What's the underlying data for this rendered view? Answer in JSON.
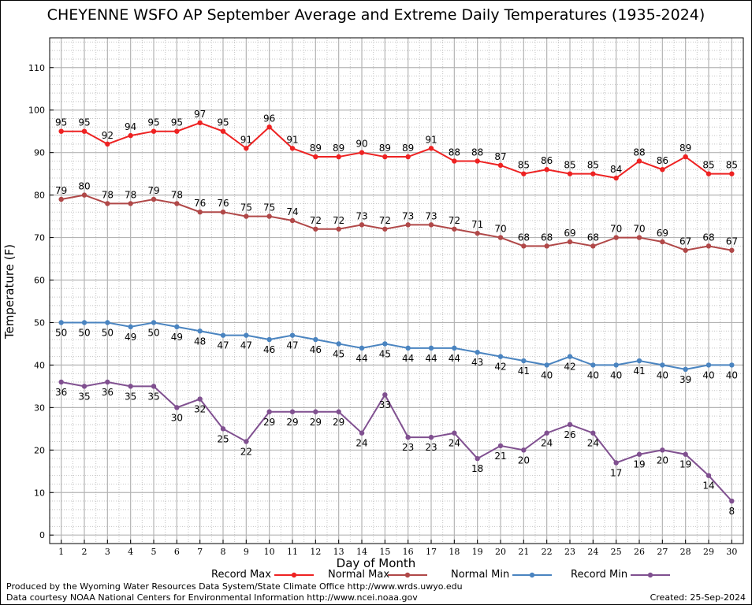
{
  "chart_data": {
    "type": "line",
    "title": "CHEYENNE WSFO AP September Average and Extreme Daily Temperatures (1935-2024)",
    "xlabel": "Day of Month",
    "ylabel": "Temperature (F)",
    "xlim": [
      0.5,
      30.5
    ],
    "ylim": [
      -2,
      117
    ],
    "yticks": [
      0,
      10,
      20,
      30,
      40,
      50,
      60,
      70,
      80,
      90,
      100,
      110
    ],
    "x": [
      1,
      2,
      3,
      4,
      5,
      6,
      7,
      8,
      9,
      10,
      11,
      12,
      13,
      14,
      15,
      16,
      17,
      18,
      19,
      20,
      21,
      22,
      23,
      24,
      25,
      26,
      27,
      28,
      29,
      30
    ],
    "grid": true,
    "legend_position": "bottom",
    "series": [
      {
        "name": "Record Max",
        "color": "#ee2222",
        "label_pos": "above",
        "values": [
          95,
          95,
          92,
          94,
          95,
          95,
          97,
          95,
          91,
          96,
          91,
          89,
          89,
          90,
          89,
          89,
          91,
          88,
          88,
          87,
          85,
          86,
          85,
          85,
          84,
          88,
          86,
          89,
          85,
          85
        ]
      },
      {
        "name": "Normal Max",
        "color": "#b04848",
        "label_pos": "above",
        "values": [
          79,
          80,
          78,
          78,
          79,
          78,
          76,
          76,
          75,
          75,
          74,
          72,
          72,
          73,
          72,
          73,
          73,
          72,
          71,
          70,
          68,
          68,
          69,
          68,
          70,
          70,
          69,
          67,
          68,
          67
        ]
      },
      {
        "name": "Normal Min",
        "color": "#4a84c0",
        "label_pos": "below",
        "values": [
          50,
          50,
          50,
          49,
          50,
          49,
          48,
          47,
          47,
          46,
          47,
          46,
          45,
          44,
          45,
          44,
          44,
          44,
          43,
          42,
          41,
          40,
          42,
          40,
          40,
          41,
          40,
          39,
          40,
          40
        ]
      },
      {
        "name": "Record Min",
        "color": "#805090",
        "label_pos": "below",
        "values": [
          36,
          35,
          36,
          35,
          35,
          30,
          32,
          25,
          22,
          29,
          29,
          29,
          29,
          24,
          33,
          23,
          23,
          24,
          18,
          21,
          20,
          24,
          26,
          24,
          17,
          19,
          20,
          19,
          14,
          8
        ]
      }
    ]
  },
  "footer": {
    "produced_by": "Produced by the Wyoming Water Resources Data System/State Climate Office http://www.wrds.uwyo.edu",
    "courtesy": "Data courtesy NOAA National Centers for Environmental Information http://www.ncei.noaa.gov",
    "created": "Created: 25-Sep-2024"
  }
}
